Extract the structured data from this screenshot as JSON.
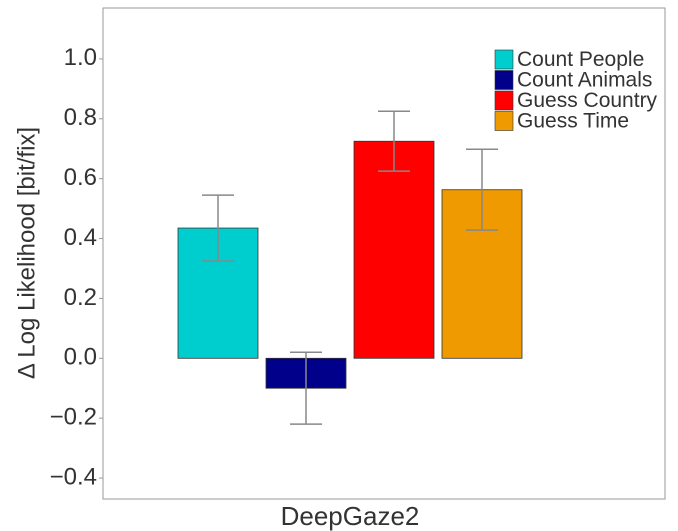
{
  "chart_data": {
    "type": "bar",
    "ylabel": "Δ Log Likelihood [bit/fix]",
    "categories": [
      "DeepGaze2"
    ],
    "series": [
      {
        "name": "Count People",
        "color": "#00cdcd",
        "values": [
          0.435
        ],
        "errors": [
          0.11
        ]
      },
      {
        "name": "Count Animals",
        "color": "#00008b",
        "values": [
          -0.1
        ],
        "errors": [
          0.12
        ]
      },
      {
        "name": "Guess Country",
        "color": "#ff0000",
        "values": [
          0.725
        ],
        "errors": [
          0.1
        ]
      },
      {
        "name": "Guess Time",
        "color": "#ee9a00",
        "values": [
          0.563
        ],
        "errors": [
          0.135
        ]
      }
    ],
    "ylim": [
      -0.47,
      1.17
    ],
    "yticks": [
      {
        "value": -0.4,
        "label": "−0.4"
      },
      {
        "value": -0.2,
        "label": "−0.2"
      },
      {
        "value": 0,
        "label": "0.0"
      },
      0.2,
      0.4,
      0.6,
      0.8,
      {
        "value": 1,
        "label": "1.0"
      }
    ],
    "legend": "upper right"
  }
}
